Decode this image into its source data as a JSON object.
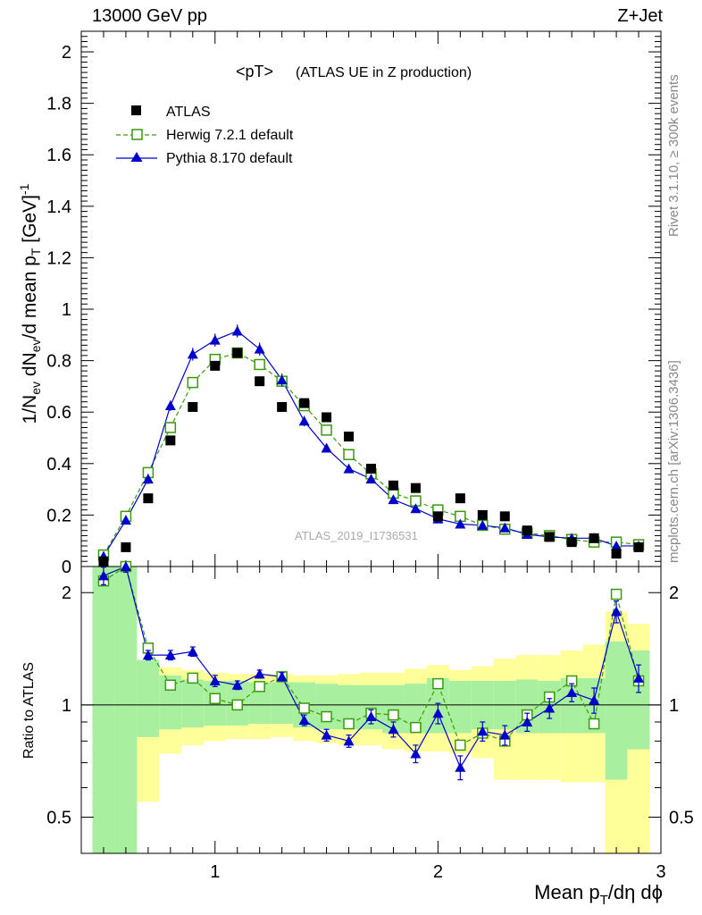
{
  "header": {
    "left": "13000 GeV pp",
    "right": "Z+Jet"
  },
  "side_labels": {
    "rivet": "Rivet 3.1.10, ≥ 300k events",
    "mcplots": "mcplots.cern.ch [arXiv:1306.3436]"
  },
  "title": "<pT>",
  "subtitle": "(ATLAS UE in Z production)",
  "watermark": "ATLAS_2019_I1736531",
  "xlabel_main": "Mean p",
  "xlabel_sub": "T",
  "xlabel_tail": "/dη dϕ",
  "ylabel_main": "1/N",
  "ylabel_sub1": "ev",
  "ylabel_mid": " dN",
  "ylabel_sub2": "ev",
  "ylabel_mid2": "/d mean p",
  "ylabel_sub3": "T",
  "ylabel_unit": " [GeV]",
  "ylabel_sup": "-1",
  "ratio_ylabel": "Ratio to ATLAS",
  "legend": [
    {
      "label": "ATLAS"
    },
    {
      "label": "Herwig 7.2.1 default"
    },
    {
      "label": "Pythia 8.170 default"
    }
  ],
  "colors": {
    "atlas": "#000000",
    "herwig": "#3a9a0e",
    "pythia": "#0000cc",
    "band_green": "#a8f0a0",
    "band_yellow": "#ffff9a"
  },
  "chart_data": {
    "type": "scatter",
    "x": [
      0.5,
      0.6,
      0.7,
      0.8,
      0.9,
      1.0,
      1.1,
      1.2,
      1.3,
      1.4,
      1.5,
      1.6,
      1.7,
      1.8,
      1.9,
      2.0,
      2.1,
      2.2,
      2.3,
      2.4,
      2.5,
      2.6,
      2.7,
      2.8,
      2.9
    ],
    "xlim": [
      0.4,
      3.0
    ],
    "xticks": [
      "1",
      "2",
      "3"
    ],
    "ylim": [
      0,
      2.08
    ],
    "yticks": [
      "0",
      "0.2",
      "0.4",
      "0.6",
      "0.8",
      "1",
      "1.2",
      "1.4",
      "1.6",
      "1.8",
      "2"
    ],
    "series": [
      {
        "name": "ATLAS",
        "values": [
          0.02,
          0.075,
          0.265,
          0.49,
          0.62,
          0.78,
          0.83,
          0.72,
          0.62,
          0.635,
          0.58,
          0.505,
          0.38,
          0.315,
          0.305,
          0.195,
          0.265,
          0.2,
          0.195,
          0.14,
          0.115,
          0.095,
          0.11,
          0.05,
          0.075
        ]
      },
      {
        "name": "Herwig 7.2.1 default",
        "values": [
          0.045,
          0.195,
          0.365,
          0.54,
          0.715,
          0.805,
          0.83,
          0.785,
          0.72,
          0.625,
          0.53,
          0.435,
          0.36,
          0.285,
          0.255,
          0.22,
          0.195,
          0.16,
          0.145,
          0.13,
          0.12,
          0.105,
          0.095,
          0.095,
          0.085
        ]
      },
      {
        "name": "Pythia 8.170 default",
        "values": [
          0.04,
          0.18,
          0.34,
          0.625,
          0.825,
          0.88,
          0.915,
          0.845,
          0.725,
          0.565,
          0.46,
          0.38,
          0.34,
          0.26,
          0.225,
          0.185,
          0.165,
          0.16,
          0.15,
          0.125,
          0.115,
          0.11,
          0.11,
          0.08,
          0.08
        ]
      }
    ],
    "yerr_pythia": [
      0.01,
      0.015,
      0.02,
      0.02,
      0.025,
      0.025,
      0.025,
      0.025,
      0.025,
      0.02,
      0.015,
      0.015,
      0.015,
      0.012,
      0.012,
      0.01,
      0.01,
      0.01,
      0.01,
      0.01,
      0.01,
      0.01,
      0.01,
      0.01,
      0.01
    ],
    "ratio": {
      "ylim": [
        0.4,
        2.35
      ],
      "log": true,
      "yticks": [
        "0.5",
        "1",
        "2"
      ],
      "herwig": [
        2.15,
        2.35,
        1.42,
        1.13,
        1.18,
        1.04,
        1.0,
        1.12,
        1.19,
        0.98,
        0.93,
        0.89,
        0.95,
        0.94,
        0.87,
        1.14,
        0.78,
        0.84,
        0.8,
        0.94,
        1.05,
        1.16,
        0.89,
        1.98,
        1.16
      ],
      "pythia": [
        2.22,
        2.35,
        1.36,
        1.36,
        1.39,
        1.16,
        1.13,
        1.21,
        1.19,
        0.91,
        0.83,
        0.8,
        0.93,
        0.86,
        0.74,
        0.95,
        0.68,
        0.85,
        0.83,
        0.9,
        0.98,
        1.08,
        1.03,
        1.78,
        1.18
      ],
      "pythia_err": [
        0.12,
        0.08,
        0.04,
        0.04,
        0.04,
        0.04,
        0.03,
        0.03,
        0.03,
        0.03,
        0.03,
        0.03,
        0.04,
        0.04,
        0.04,
        0.06,
        0.05,
        0.05,
        0.05,
        0.05,
        0.06,
        0.06,
        0.08,
        0.12,
        0.1
      ],
      "band_green": [
        [
          0.35,
          2.35
        ],
        [
          0.35,
          2.35
        ],
        [
          0.82,
          1.32
        ],
        [
          0.86,
          1.2
        ],
        [
          0.87,
          1.17
        ],
        [
          0.88,
          1.16
        ],
        [
          0.88,
          1.16
        ],
        [
          0.89,
          1.15
        ],
        [
          0.89,
          1.15
        ],
        [
          0.87,
          1.15
        ],
        [
          0.86,
          1.14
        ],
        [
          0.86,
          1.13
        ],
        [
          0.86,
          1.13
        ],
        [
          0.84,
          1.13
        ],
        [
          0.84,
          1.14
        ],
        [
          0.84,
          1.18
        ],
        [
          0.84,
          1.16
        ],
        [
          0.86,
          1.16
        ],
        [
          0.86,
          1.16
        ],
        [
          0.84,
          1.17
        ],
        [
          0.84,
          1.16
        ],
        [
          0.84,
          1.18
        ],
        [
          0.84,
          1.18
        ],
        [
          0.63,
          1.48
        ],
        [
          0.76,
          1.4
        ]
      ],
      "band_yellow": [
        [
          0.35,
          2.35
        ],
        [
          0.35,
          2.35
        ],
        [
          0.55,
          1.28
        ],
        [
          0.74,
          1.26
        ],
        [
          0.78,
          1.24
        ],
        [
          0.8,
          1.22
        ],
        [
          0.81,
          1.21
        ],
        [
          0.81,
          1.21
        ],
        [
          0.82,
          1.21
        ],
        [
          0.8,
          1.2
        ],
        [
          0.79,
          1.2
        ],
        [
          0.78,
          1.21
        ],
        [
          0.78,
          1.22
        ],
        [
          0.76,
          1.22
        ],
        [
          0.75,
          1.25
        ],
        [
          0.75,
          1.28
        ],
        [
          0.74,
          1.24
        ],
        [
          0.72,
          1.27
        ],
        [
          0.63,
          1.33
        ],
        [
          0.63,
          1.36
        ],
        [
          0.63,
          1.36
        ],
        [
          0.62,
          1.4
        ],
        [
          0.62,
          1.45
        ],
        [
          0.35,
          1.78
        ],
        [
          0.38,
          1.65
        ]
      ]
    }
  }
}
